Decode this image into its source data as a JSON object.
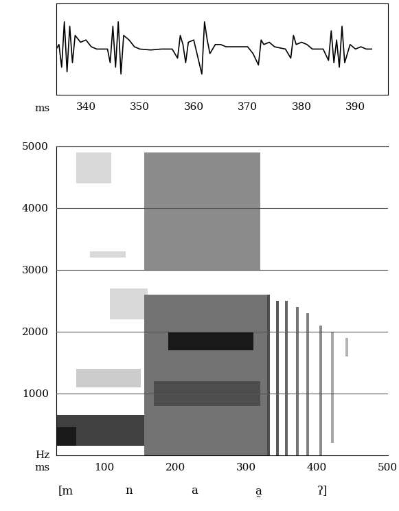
{
  "chart_data": [
    {
      "type": "line",
      "xlabel": "ms",
      "x": [
        334.5,
        335,
        335.5,
        336,
        336.5,
        337,
        337.5,
        338,
        339,
        340,
        341,
        342,
        344,
        344.5,
        345,
        345.5,
        346,
        346.5,
        347,
        348,
        349,
        350,
        352,
        354,
        356,
        357,
        357.5,
        358,
        358.5,
        359,
        360,
        361,
        361.5,
        362,
        362.5,
        363,
        364,
        365,
        366,
        368,
        370,
        371,
        372,
        372.5,
        373,
        374,
        375,
        377,
        378,
        378.5,
        379,
        380,
        381,
        382,
        384,
        385,
        385.5,
        386,
        386.5,
        387,
        387.5,
        388,
        389,
        390,
        391,
        392,
        393
      ],
      "values": [
        0,
        0.1,
        -0.4,
        0.6,
        -0.5,
        0.5,
        -0.3,
        0.3,
        0.15,
        0.2,
        0.05,
        0,
        0,
        -0.3,
        0.5,
        -0.4,
        0.6,
        -0.55,
        0.3,
        0.2,
        0.05,
        0,
        -0.02,
        0,
        0,
        -0.2,
        0.3,
        0.1,
        -0.3,
        0.15,
        0.2,
        -0.3,
        -0.55,
        0.6,
        0.2,
        -0.1,
        0.1,
        0.1,
        0.05,
        0.05,
        0.05,
        -0.1,
        -0.35,
        0.2,
        0.1,
        0.15,
        0.05,
        0,
        -0.2,
        0.3,
        0.1,
        0.15,
        0.1,
        0,
        0,
        -0.25,
        0.4,
        -0.3,
        0.2,
        -0.4,
        0.5,
        -0.3,
        0.1,
        0,
        0.05,
        0,
        0
      ],
      "color": "#000000",
      "xlim": [
        334.5,
        396
      ],
      "xticks": [
        340,
        350,
        360,
        370,
        380,
        390
      ],
      "ylim": [
        -1,
        1
      ],
      "tick_labels": "x"
    },
    {
      "type": "spectrogram",
      "xlabel": "ms",
      "ylabel": "Hz",
      "xlim": [
        32,
        500
      ],
      "xticks": [
        100,
        200,
        300,
        400,
        500
      ],
      "ylim": [
        0,
        5000
      ],
      "yticks": [
        1000,
        2000,
        3000,
        4000,
        5000
      ],
      "grid": "y",
      "bands": [
        {
          "time": [
            32,
            156
          ],
          "frequency": [
            150,
            650
          ],
          "level": 0.75
        },
        {
          "time": [
            32,
            60
          ],
          "frequency": [
            150,
            450
          ],
          "level": 0.9
        },
        {
          "time": [
            60,
            151
          ],
          "frequency": [
            1100,
            1400
          ],
          "level": 0.2
        },
        {
          "time": [
            60,
            110
          ],
          "frequency": [
            4400,
            4900
          ],
          "level": 0.15
        },
        {
          "time": [
            80,
            130
          ],
          "frequency": [
            3200,
            3300
          ],
          "level": 0.15
        },
        {
          "time": [
            108,
            161
          ],
          "frequency": [
            2200,
            2700
          ],
          "level": 0.15
        },
        {
          "time": [
            156,
            330
          ],
          "frequency": [
            0,
            2600
          ],
          "level": 0.55
        },
        {
          "time": [
            156,
            320
          ],
          "frequency": [
            3000,
            4900
          ],
          "level": 0.45
        },
        {
          "time": [
            170,
            320
          ],
          "frequency": [
            800,
            1200
          ],
          "level": 0.7
        },
        {
          "time": [
            190,
            310
          ],
          "frequency": [
            1700,
            2000
          ],
          "level": 0.9
        },
        {
          "time": [
            330,
            334
          ],
          "frequency": [
            0,
            2600
          ],
          "level": 0.7
        },
        {
          "time": [
            342,
            346
          ],
          "frequency": [
            0,
            2500
          ],
          "level": 0.65
        },
        {
          "time": [
            355,
            359
          ],
          "frequency": [
            0,
            2500
          ],
          "level": 0.6
        },
        {
          "time": [
            370,
            374
          ],
          "frequency": [
            0,
            2400
          ],
          "level": 0.55
        },
        {
          "time": [
            385,
            389
          ],
          "frequency": [
            0,
            2300
          ],
          "level": 0.5
        },
        {
          "time": [
            403,
            407
          ],
          "frequency": [
            0,
            2100
          ],
          "level": 0.45
        },
        {
          "time": [
            420,
            424
          ],
          "frequency": [
            200,
            2000
          ],
          "level": 0.35
        },
        {
          "time": [
            440,
            444
          ],
          "frequency": [
            1600,
            1900
          ],
          "level": 0.3
        }
      ],
      "segments": [
        {
          "label": "[m",
          "time": 45
        },
        {
          "label": "n",
          "time": 135
        },
        {
          "label": "a",
          "time": 227
        },
        {
          "label": "a̰",
          "time": 317
        },
        {
          "label": "ʔ]",
          "time": 408
        }
      ]
    }
  ]
}
